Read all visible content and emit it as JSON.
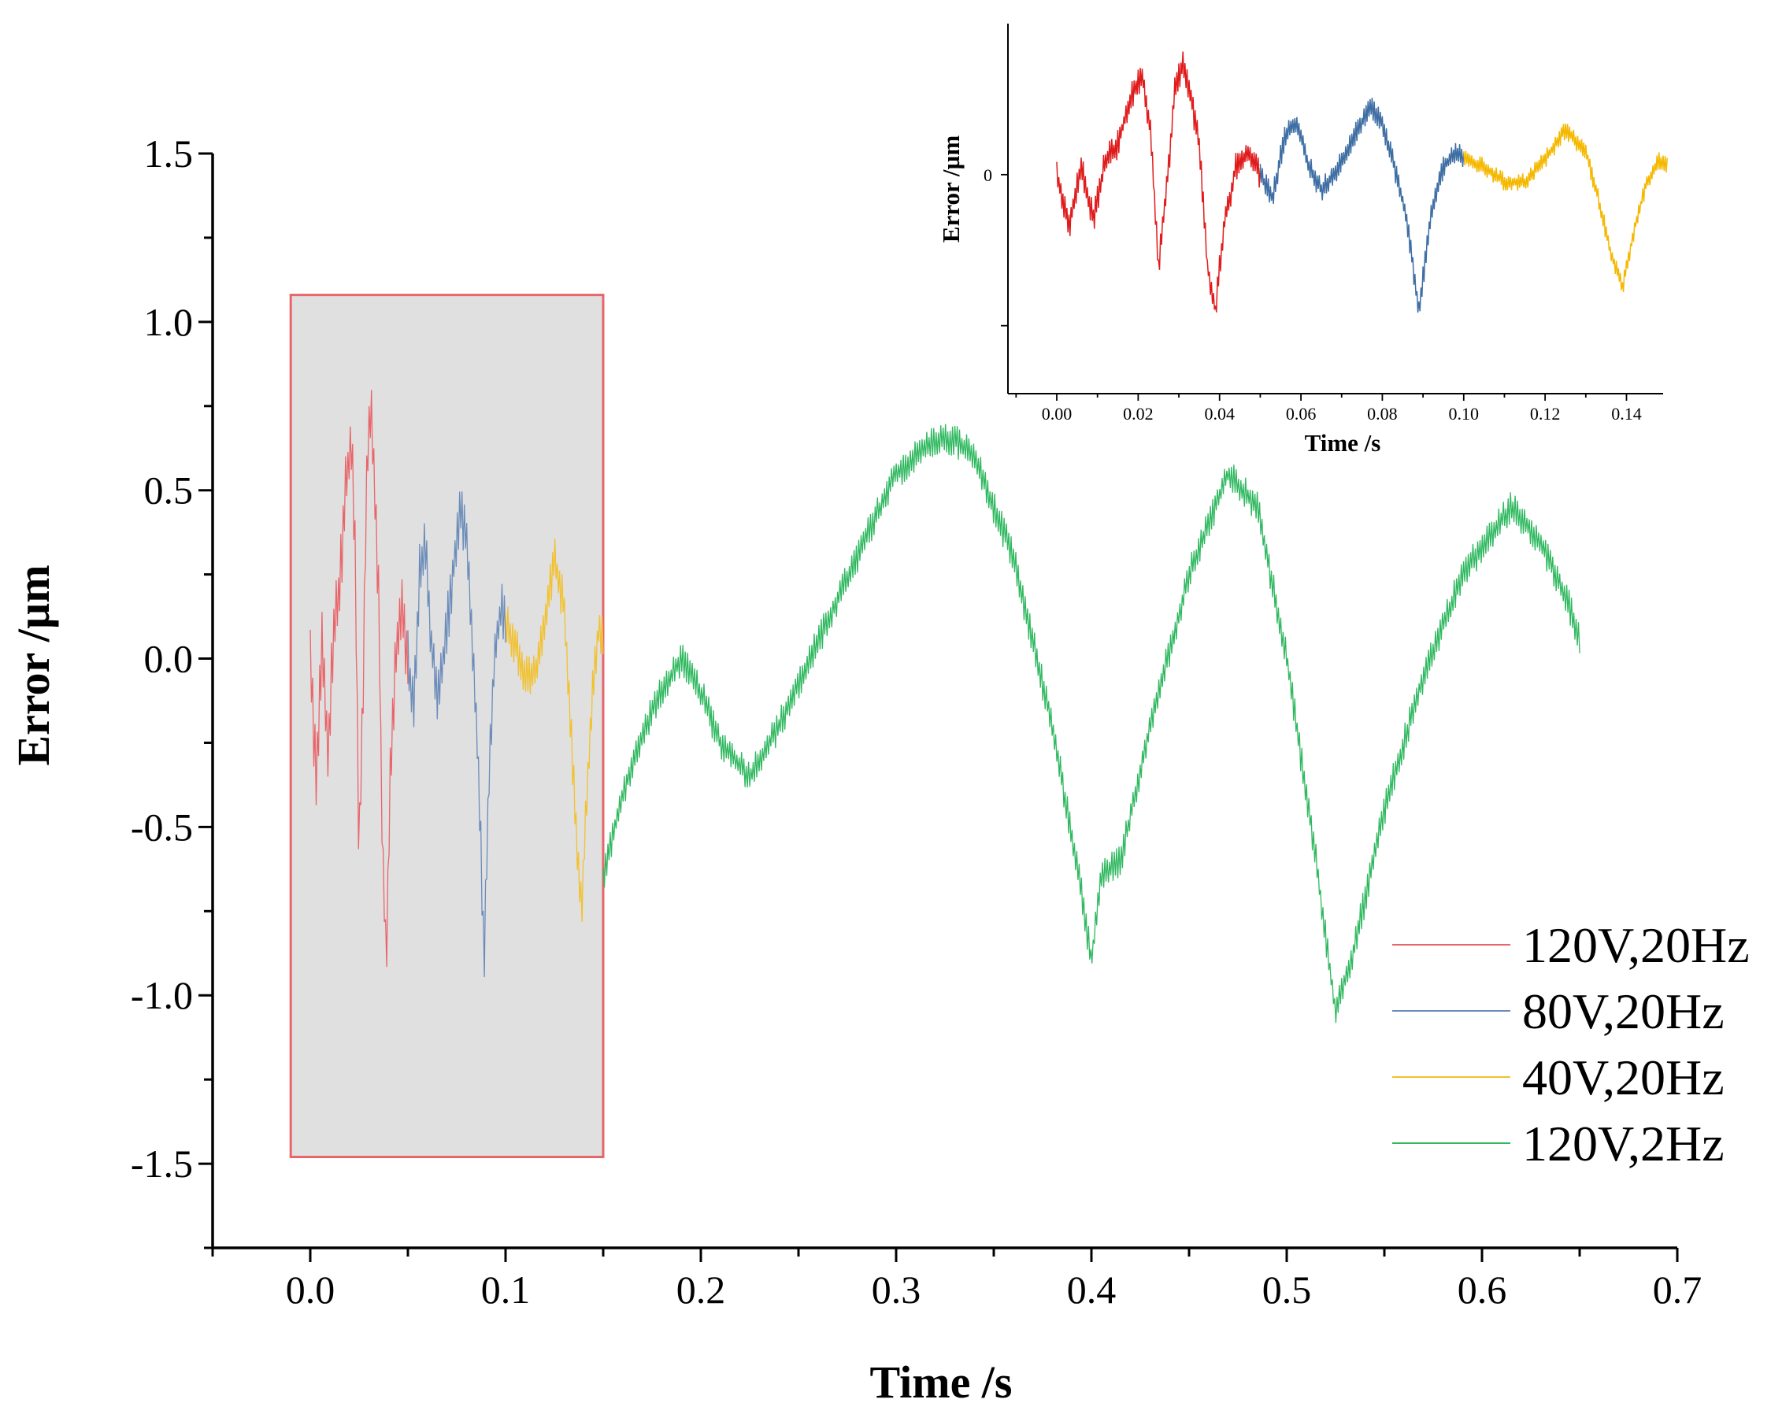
{
  "chart_data": [
    {
      "type": "line",
      "title": "",
      "xlabel": "Time  /s",
      "ylabel": "Error  /µm",
      "xlim": [
        -0.05,
        0.7
      ],
      "ylim": [
        -1.75,
        1.5
      ],
      "xticks": [
        0.0,
        0.1,
        0.2,
        0.3,
        0.4,
        0.5,
        0.6,
        0.7
      ],
      "xtick_labels": [
        "0.0",
        "0.1",
        "0.2",
        "0.3",
        "0.4",
        "0.5",
        "0.6",
        "0.7"
      ],
      "yticks": [
        -1.5,
        -1.0,
        -0.5,
        0.0,
        0.5,
        1.0,
        1.5
      ],
      "ytick_labels": [
        "-1.5",
        "-1.0",
        "-0.5",
        "0.0",
        "0.5",
        "1.0",
        "1.5"
      ],
      "highlight_region": {
        "x": [
          -0.01,
          0.15
        ],
        "y": [
          -1.48,
          1.08
        ],
        "fill": "#e0e0e0",
        "border": "#e8656a"
      },
      "legend": {
        "location": "right",
        "entries": [
          "120V,20Hz",
          "80V,20Hz",
          "40V,20Hz",
          "120V,2Hz"
        ]
      },
      "series": [
        {
          "name": "120V,20Hz",
          "color": "#e8656a",
          "x_range": [
            0.0,
            0.05
          ],
          "noise": 0.22,
          "x": [
            0.0,
            0.003,
            0.006,
            0.009,
            0.012,
            0.015,
            0.018,
            0.021,
            0.023,
            0.025,
            0.027,
            0.029,
            0.031,
            0.033,
            0.035,
            0.037,
            0.039,
            0.041,
            0.044,
            0.047,
            0.05
          ],
          "y": [
            0.0,
            -0.35,
            0.05,
            -0.3,
            0.1,
            0.2,
            0.5,
            0.65,
            0.3,
            -0.6,
            -0.1,
            0.55,
            0.75,
            0.5,
            0.2,
            -0.6,
            -0.9,
            -0.35,
            0.05,
            0.15,
            0.0
          ]
        },
        {
          "name": "80V,20Hz",
          "color": "#6b8cba",
          "x_range": [
            0.05,
            0.1
          ],
          "noise": 0.18,
          "x": [
            0.05,
            0.053,
            0.056,
            0.059,
            0.062,
            0.065,
            0.068,
            0.071,
            0.074,
            0.077,
            0.08,
            0.083,
            0.086,
            0.089,
            0.092,
            0.095,
            0.098,
            0.1
          ],
          "y": [
            0.0,
            -0.15,
            0.25,
            0.35,
            0.05,
            -0.1,
            0.0,
            0.15,
            0.3,
            0.45,
            0.35,
            0.05,
            -0.3,
            -0.9,
            -0.25,
            0.05,
            0.15,
            0.1
          ]
        },
        {
          "name": "40V,20Hz",
          "color": "#f2c12e",
          "x_range": [
            0.1,
            0.15
          ],
          "noise": 0.14,
          "x": [
            0.1,
            0.105,
            0.11,
            0.115,
            0.12,
            0.125,
            0.13,
            0.133,
            0.136,
            0.139,
            0.142,
            0.145,
            0.148,
            0.15
          ],
          "y": [
            0.1,
            0.05,
            -0.05,
            -0.05,
            0.1,
            0.3,
            0.15,
            -0.15,
            -0.5,
            -0.75,
            -0.35,
            -0.05,
            0.1,
            0.05
          ]
        },
        {
          "name": "120V,2Hz",
          "color": "#2fb85f",
          "x_range": [
            0.15,
            0.65
          ],
          "noise": 0.1,
          "x": [
            0.15,
            0.16,
            0.175,
            0.19,
            0.2,
            0.21,
            0.225,
            0.24,
            0.26,
            0.28,
            0.3,
            0.32,
            0.33,
            0.34,
            0.36,
            0.38,
            0.395,
            0.4,
            0.405,
            0.415,
            0.43,
            0.45,
            0.47,
            0.485,
            0.5,
            0.515,
            0.525,
            0.535,
            0.55,
            0.57,
            0.59,
            0.615,
            0.63,
            0.645,
            0.65
          ],
          "y": [
            -0.65,
            -0.4,
            -0.15,
            0.0,
            -0.1,
            -0.25,
            -0.35,
            -0.2,
            0.05,
            0.3,
            0.55,
            0.65,
            0.65,
            0.6,
            0.3,
            -0.2,
            -0.7,
            -0.9,
            -0.65,
            -0.6,
            -0.2,
            0.25,
            0.55,
            0.45,
            0.0,
            -0.6,
            -1.05,
            -0.85,
            -0.45,
            -0.05,
            0.25,
            0.45,
            0.35,
            0.15,
            0.05
          ]
        }
      ]
    },
    {
      "type": "line",
      "title": "",
      "xlabel": "Time  /s",
      "ylabel": "Error  /µm",
      "xlim": [
        -0.012,
        0.149
      ],
      "ylim": [
        -1.45,
        1.0
      ],
      "xticks": [
        0.0,
        0.02,
        0.04,
        0.06,
        0.08,
        0.1,
        0.12,
        0.14
      ],
      "xtick_labels": [
        "0.00",
        "0.02",
        "0.04",
        "0.06",
        "0.08",
        "0.10",
        "0.12",
        "0.14"
      ],
      "yticks": [
        0.0
      ],
      "ytick_labels": [
        "0"
      ],
      "ytick_marks": [
        0.0,
        -1.0
      ],
      "series": [
        {
          "name": "120V,20Hz",
          "color": "#e01b1b",
          "x_range": [
            0.0,
            0.05
          ]
        },
        {
          "name": "80V,20Hz",
          "color": "#3e6ea3",
          "x_range": [
            0.05,
            0.1
          ]
        },
        {
          "name": "40V,20Hz",
          "color": "#f5b800",
          "x_range": [
            0.1,
            0.15
          ]
        }
      ]
    }
  ]
}
